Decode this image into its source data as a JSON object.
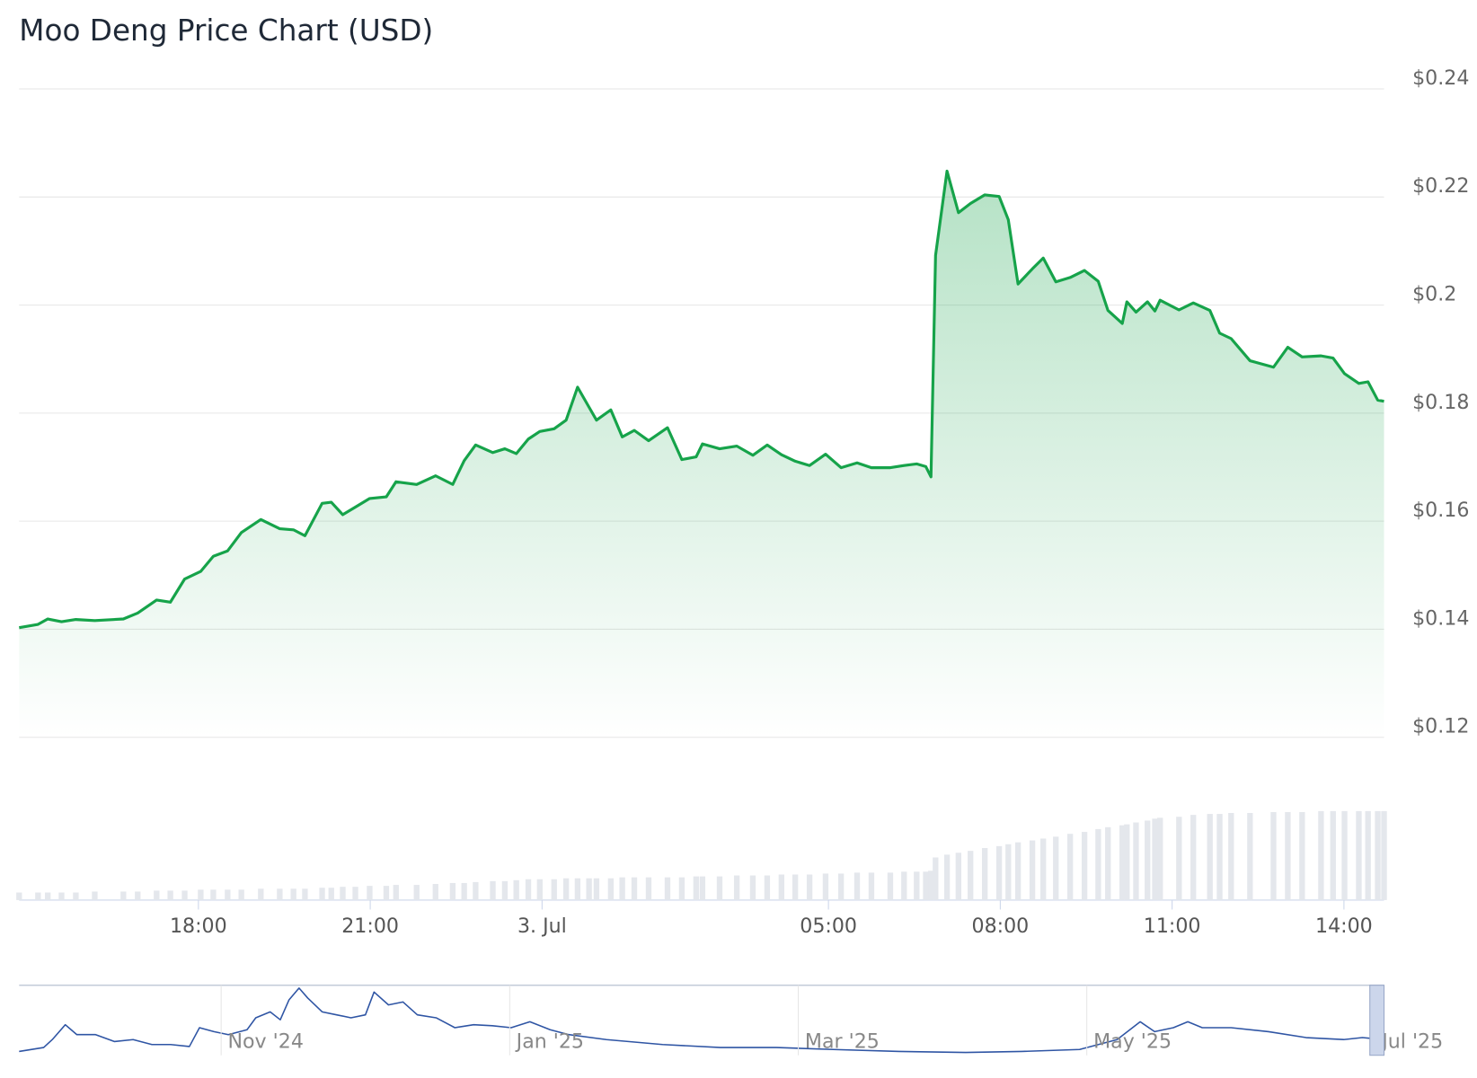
{
  "chart_data": [
    {
      "type": "line",
      "title": "Moo Deng Price Chart (USD)",
      "fill": true,
      "x": [
        -9.13,
        -8.8,
        -8.63,
        -8.39,
        -8.14,
        -7.81,
        -7.31,
        -7.06,
        -6.73,
        -6.49,
        -6.24,
        -5.96,
        -5.74,
        -5.49,
        -5.25,
        -4.91,
        -4.58,
        -4.34,
        -4.14,
        -3.84,
        -3.68,
        -3.48,
        -3.26,
        -3.01,
        -2.72,
        -2.55,
        -2.19,
        -1.86,
        -1.56,
        -1.36,
        -1.16,
        -0.86,
        -0.65,
        -0.45,
        -0.24,
        -0.04,
        0.21,
        0.42,
        0.62,
        0.82,
        0.95,
        1.2,
        1.4,
        1.61,
        1.86,
        2.19,
        2.44,
        2.69,
        2.8,
        3.1,
        3.4,
        3.68,
        3.93,
        4.18,
        4.42,
        4.67,
        4.95,
        5.22,
        5.5,
        5.75,
        6.08,
        6.32,
        6.54,
        6.7,
        6.79,
        6.87,
        7.07,
        7.27,
        7.48,
        7.73,
        7.98,
        8.14,
        8.31,
        8.56,
        8.75,
        8.97,
        9.22,
        9.47,
        9.71,
        9.88,
        10.13,
        10.21,
        10.37,
        10.57,
        10.7,
        10.79,
        11.12,
        11.37,
        11.66,
        11.83,
        12.03,
        12.36,
        12.77,
        13.02,
        13.27,
        13.6,
        13.81,
        14.01,
        14.26,
        14.42,
        14.59,
        14.7
      ],
      "series": [
        {
          "color": "#16a34a",
          "values": [
            0.1403,
            0.1409,
            0.1419,
            0.1414,
            0.1418,
            0.1416,
            0.1419,
            0.143,
            0.1454,
            0.145,
            0.1493,
            0.1507,
            0.1535,
            0.1545,
            0.1579,
            0.1603,
            0.1586,
            0.1584,
            0.1573,
            0.1633,
            0.1635,
            0.1612,
            0.1626,
            0.1642,
            0.1645,
            0.1673,
            0.1668,
            0.1684,
            0.1668,
            0.1712,
            0.1741,
            0.1727,
            0.1734,
            0.1725,
            0.1752,
            0.1766,
            0.1771,
            0.1787,
            0.1848,
            0.1811,
            0.1787,
            0.1806,
            0.1756,
            0.1768,
            0.1749,
            0.1773,
            0.1714,
            0.1719,
            0.1743,
            0.1734,
            0.1739,
            0.1722,
            0.1741,
            0.1723,
            0.1711,
            0.1703,
            0.1724,
            0.1699,
            0.1708,
            0.1699,
            0.1699,
            0.1703,
            0.1706,
            0.1701,
            0.1682,
            0.2092,
            0.2248,
            0.2171,
            0.2188,
            0.2204,
            0.2201,
            0.2158,
            0.2039,
            0.2067,
            0.2087,
            0.2043,
            0.2051,
            0.2064,
            0.2044,
            0.199,
            0.1966,
            0.2006,
            0.1987,
            0.2006,
            0.1989,
            0.2009,
            0.1991,
            0.2004,
            0.199,
            0.1948,
            0.1938,
            0.1897,
            0.1885,
            0.1922,
            0.1904,
            0.1906,
            0.1902,
            0.1873,
            0.1855,
            0.1858,
            0.1824,
            0.1822
          ]
        }
      ],
      "volume": {
        "color": "#e4e7ec",
        "values": [
          8,
          8,
          8,
          8,
          8,
          9,
          9,
          9,
          10,
          10,
          10,
          11,
          11,
          11,
          11,
          12,
          12,
          12,
          12,
          13,
          13,
          14,
          14,
          15,
          15,
          16,
          16,
          17,
          18,
          18,
          19,
          20,
          20,
          21,
          22,
          22,
          22,
          23,
          23,
          23,
          23,
          23,
          24,
          24,
          24,
          24,
          24,
          25,
          25,
          25,
          26,
          26,
          26,
          27,
          27,
          27,
          28,
          28,
          29,
          29,
          29,
          30,
          30,
          30,
          31,
          45,
          48,
          50,
          52,
          55,
          57,
          59,
          61,
          63,
          65,
          67,
          70,
          72,
          75,
          77,
          79,
          80,
          82,
          84,
          86,
          87,
          88,
          90,
          91,
          91,
          92,
          92,
          93,
          93,
          93,
          94,
          94,
          94,
          94,
          94,
          94,
          94
        ]
      },
      "xlim": [
        -9.13,
        14.7
      ],
      "xticks": [
        {
          "value": -6,
          "label": "18:00"
        },
        {
          "value": -3,
          "label": "21:00"
        },
        {
          "value": 0,
          "label": "3. Jul"
        },
        {
          "value": 5,
          "label": "05:00"
        },
        {
          "value": 8,
          "label": "08:00"
        },
        {
          "value": 11,
          "label": "11:00"
        },
        {
          "value": 14,
          "label": "14:00"
        }
      ],
      "ylim": [
        0.12,
        0.24
      ],
      "yticks": [
        {
          "value": 0.12,
          "label": "$0.12"
        },
        {
          "value": 0.14,
          "label": "$0.14"
        },
        {
          "value": 0.16,
          "label": "$0.16"
        },
        {
          "value": 0.18,
          "label": "$0.18"
        },
        {
          "value": 0.2,
          "label": "$0.2"
        },
        {
          "value": 0.22,
          "label": "$0.22"
        },
        {
          "value": 0.24,
          "label": "$0.24"
        }
      ],
      "grid": true
    },
    {
      "type": "line",
      "color": "#2f55a4",
      "x": [
        -1.4,
        -1.23,
        -1.17,
        -1.08,
        -1.0,
        -0.87,
        -0.74,
        -0.61,
        -0.48,
        -0.35,
        -0.22,
        -0.15,
        -0.05,
        0.05,
        0.18,
        0.24,
        0.34,
        0.41,
        0.47,
        0.54,
        0.6,
        0.7,
        0.8,
        0.9,
        1.0,
        1.06,
        1.16,
        1.26,
        1.36,
        1.49,
        1.62,
        1.75,
        1.88,
        2.01,
        2.14,
        2.28,
        2.41,
        2.67,
        3.06,
        3.46,
        3.85,
        4.24,
        4.7,
        5.16,
        5.55,
        5.95,
        6.21,
        6.37,
        6.47,
        6.6,
        6.7,
        6.8,
        7.0,
        7.26,
        7.52,
        7.78,
        7.91,
        8.06
      ],
      "values": [
        3,
        7,
        15,
        30,
        20,
        20,
        13,
        15,
        10,
        10,
        8,
        27,
        23,
        20,
        25,
        37,
        43,
        35,
        55,
        67,
        57,
        43,
        40,
        37,
        40,
        63,
        50,
        53,
        40,
        37,
        27,
        30,
        29,
        27,
        33,
        25,
        20,
        15,
        10,
        7,
        7,
        5,
        3,
        2,
        3,
        5,
        15,
        33,
        23,
        27,
        33,
        27,
        27,
        23,
        17,
        15,
        17,
        15
      ],
      "xlim": [
        -1.4,
        8.06
      ],
      "xticks": [
        {
          "value": 0,
          "label": "Nov '24"
        },
        {
          "value": 2,
          "label": "Jan '25"
        },
        {
          "value": 4,
          "label": "Mar '25"
        },
        {
          "value": 6,
          "label": "May '25"
        },
        {
          "value": 8,
          "label": "Jul '25"
        }
      ]
    }
  ]
}
